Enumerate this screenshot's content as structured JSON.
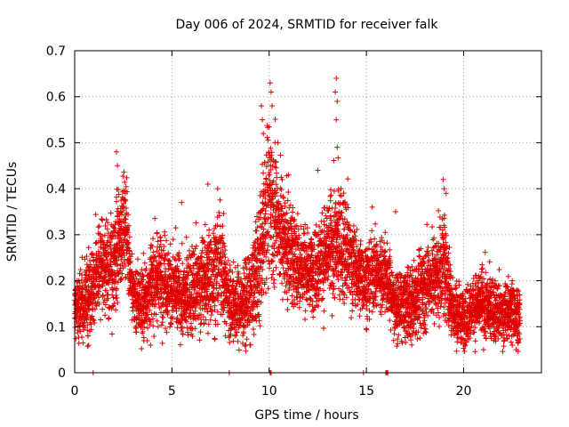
{
  "chart_data": {
    "type": "scatter",
    "title": "Day 006 of 2024, SRMTID for receiver falk",
    "xlabel": "GPS time / hours",
    "ylabel": "SRMTID / TECUs",
    "xlim": [
      0,
      24
    ],
    "ylim": [
      0,
      0.7
    ],
    "x_ticks": [
      0,
      5,
      10,
      15,
      20
    ],
    "x_tick_labels": [
      "0",
      "5",
      "10",
      "15",
      "20"
    ],
    "y_ticks": [
      0,
      0.1,
      0.2,
      0.3,
      0.4,
      0.5,
      0.6,
      0.7
    ],
    "y_tick_labels": [
      "0",
      "0.1",
      "0.2",
      "0.3",
      "0.4",
      "0.5",
      "0.6",
      "0.7"
    ],
    "grid": true,
    "marker": "plus",
    "point_color": "#e00000",
    "series_envelope": {
      "name": "SRMTID",
      "hours": [
        0,
        0.5,
        1,
        1.5,
        2,
        2.3,
        2.6,
        3,
        3.5,
        4,
        4.5,
        5,
        5.5,
        6,
        6.5,
        7,
        7.5,
        8,
        8.5,
        9,
        9.5,
        9.8,
        10.1,
        10.5,
        11,
        11.5,
        12,
        12.5,
        13,
        13.5,
        14,
        14.5,
        15,
        15.5,
        16,
        16.5,
        17,
        17.5,
        18,
        18.5,
        19,
        19.5,
        20,
        20.5,
        21,
        21.5,
        22,
        22.5,
        22.9
      ],
      "typical": [
        0.14,
        0.15,
        0.2,
        0.24,
        0.22,
        0.3,
        0.33,
        0.16,
        0.15,
        0.2,
        0.21,
        0.19,
        0.16,
        0.18,
        0.2,
        0.21,
        0.24,
        0.15,
        0.14,
        0.16,
        0.25,
        0.35,
        0.38,
        0.32,
        0.27,
        0.24,
        0.22,
        0.23,
        0.26,
        0.29,
        0.27,
        0.22,
        0.2,
        0.22,
        0.21,
        0.14,
        0.15,
        0.16,
        0.19,
        0.21,
        0.24,
        0.13,
        0.12,
        0.14,
        0.15,
        0.14,
        0.13,
        0.14,
        0.12
      ],
      "spread": [
        0.04,
        0.05,
        0.06,
        0.06,
        0.07,
        0.08,
        0.06,
        0.04,
        0.05,
        0.06,
        0.06,
        0.06,
        0.05,
        0.06,
        0.06,
        0.07,
        0.07,
        0.05,
        0.05,
        0.06,
        0.08,
        0.1,
        0.1,
        0.09,
        0.07,
        0.06,
        0.05,
        0.06,
        0.07,
        0.08,
        0.07,
        0.05,
        0.05,
        0.05,
        0.05,
        0.04,
        0.05,
        0.05,
        0.06,
        0.06,
        0.07,
        0.04,
        0.04,
        0.04,
        0.05,
        0.04,
        0.04,
        0.04,
        0.04
      ]
    },
    "notable_points": [
      {
        "x": 2.15,
        "y": 0.48
      },
      {
        "x": 2.2,
        "y": 0.45
      },
      {
        "x": 2.6,
        "y": 0.39
      },
      {
        "x": 5.5,
        "y": 0.37
      },
      {
        "x": 6.85,
        "y": 0.41
      },
      {
        "x": 7.35,
        "y": 0.4
      },
      {
        "x": 9.6,
        "y": 0.58
      },
      {
        "x": 9.65,
        "y": 0.55
      },
      {
        "x": 9.7,
        "y": 0.52
      },
      {
        "x": 10.05,
        "y": 0.63
      },
      {
        "x": 10.1,
        "y": 0.61
      },
      {
        "x": 10.15,
        "y": 0.58
      },
      {
        "x": 10.3,
        "y": 0.5
      },
      {
        "x": 10.45,
        "y": 0.5
      },
      {
        "x": 11.0,
        "y": 0.43
      },
      {
        "x": 12.5,
        "y": 0.44
      },
      {
        "x": 13.45,
        "y": 0.64
      },
      {
        "x": 13.4,
        "y": 0.61
      },
      {
        "x": 13.5,
        "y": 0.59
      },
      {
        "x": 13.45,
        "y": 0.55
      },
      {
        "x": 13.5,
        "y": 0.49
      },
      {
        "x": 15.3,
        "y": 0.36
      },
      {
        "x": 16.5,
        "y": 0.35
      },
      {
        "x": 18.95,
        "y": 0.42
      },
      {
        "x": 19.0,
        "y": 0.4
      },
      {
        "x": 19.1,
        "y": 0.39
      },
      {
        "x": 3.9,
        "y": 0.06
      },
      {
        "x": 7.75,
        "y": 0.08
      },
      {
        "x": 20.1,
        "y": 0.07
      },
      {
        "x": 21.55,
        "y": 0.07
      },
      {
        "x": 22.5,
        "y": 0.06
      },
      {
        "x": 22.7,
        "y": 0.05
      },
      {
        "x": 22.75,
        "y": 0.08
      },
      {
        "x": 16.4,
        "y": 0.07
      }
    ],
    "zero_points": [
      0.95,
      7.95,
      10.05,
      10.1,
      14.85,
      16.0,
      16.05,
      16.1
    ]
  }
}
